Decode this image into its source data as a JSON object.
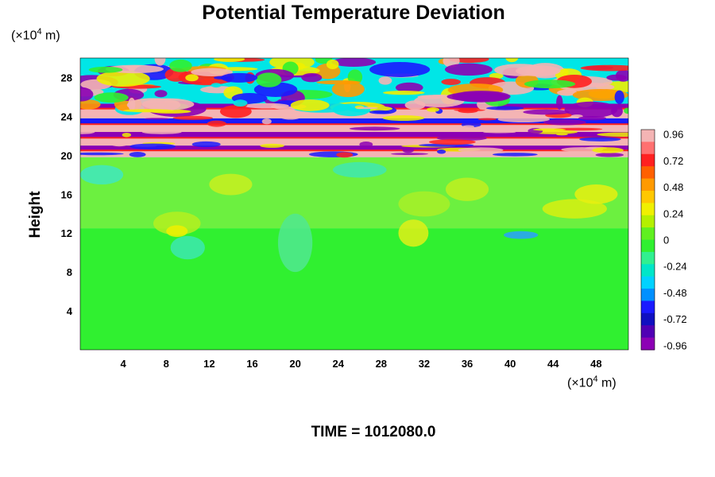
{
  "chart_data": {
    "type": "heatmap",
    "title": "Potential Temperature Deviation",
    "ylabel": "Height",
    "x_unit": {
      "prefix": "(×10",
      "exp": "4",
      "suffix": " m)"
    },
    "y_unit": {
      "prefix": "(×10",
      "exp": "4",
      "suffix": " m)"
    },
    "footer": "TIME = 1012080.0",
    "xlim": [
      0,
      51
    ],
    "ylim": [
      0,
      30
    ],
    "x_ticks": [
      "4",
      "8",
      "12",
      "16",
      "20",
      "24",
      "28",
      "32",
      "36",
      "40",
      "44",
      "48"
    ],
    "y_ticks": [
      "4",
      "8",
      "12",
      "16",
      "20",
      "24",
      "28"
    ],
    "colorbar": {
      "range": [
        -1.0,
        1.0
      ],
      "tick_labels": [
        "0.96",
        "0.72",
        "0.48",
        "0.24",
        "0",
        "-0.24",
        "-0.48",
        "-0.72",
        "-0.96"
      ]
    },
    "field_description_regions": [
      {
        "y_range": [
          0,
          12.5
        ],
        "value_approx": 0.0
      },
      {
        "y_range": [
          12.5,
          19.8
        ],
        "value_approx": 0.05
      },
      {
        "y_range": [
          19.8,
          30
        ],
        "value_range": [
          -1.0,
          1.0
        ]
      }
    ],
    "colors": {
      "pink": "#f4b4b4",
      "red": "#ff2020",
      "orange": "#ff9a00",
      "yellow": "#f0f000",
      "green": "#30f030",
      "cyan": "#00e6e6",
      "blue": "#1a1aff",
      "purple": "#8c00b4"
    }
  }
}
